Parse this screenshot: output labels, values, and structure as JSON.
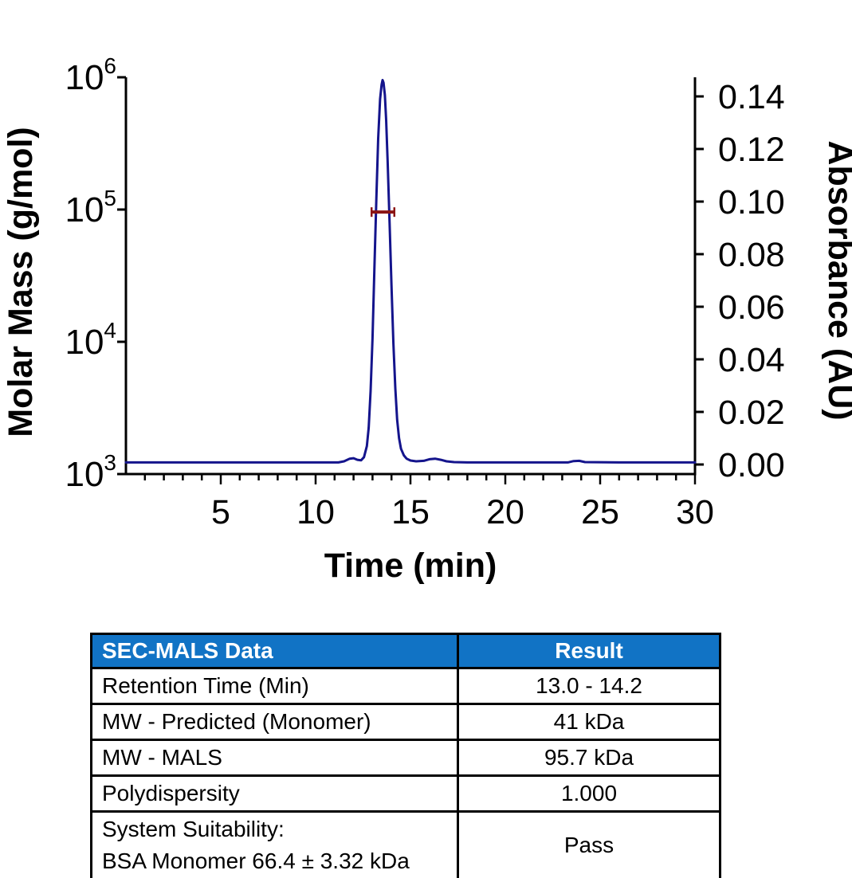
{
  "chart_data": {
    "type": "line",
    "title": "",
    "xlabel": "Time (min)",
    "ylabel_left": "Molar Mass (g/mol)",
    "ylabel_right": "Absorbance (AU)",
    "x_axis": {
      "min": 0,
      "max": 30,
      "major_ticks": [
        5,
        10,
        15,
        20,
        25,
        30
      ],
      "minor_tick_interval": 1
    },
    "y_left_axis": {
      "scale": "log",
      "min": 1000,
      "max": 1000000,
      "tick_exponents": [
        3,
        4,
        5,
        6
      ],
      "tick_base": "10"
    },
    "y_right_axis": {
      "min": 0.0,
      "max": 0.146,
      "tick_step": 0.02,
      "tick_labels": [
        "0.00",
        "0.02",
        "0.04",
        "0.06",
        "0.08",
        "0.10",
        "0.12",
        "0.14"
      ]
    },
    "grid": false,
    "legend": "none",
    "series": [
      {
        "name": "uv-absorbance-trace",
        "axis": "right",
        "color": "#14148C",
        "points": [
          [
            0,
            0.0008
          ],
          [
            2,
            0.0008
          ],
          [
            4,
            0.0008
          ],
          [
            6,
            0.0008
          ],
          [
            8,
            0.0008
          ],
          [
            10,
            0.0008
          ],
          [
            11.2,
            0.0008
          ],
          [
            11.5,
            0.0012
          ],
          [
            11.8,
            0.0022
          ],
          [
            12.0,
            0.0024
          ],
          [
            12.2,
            0.0018
          ],
          [
            12.4,
            0.0016
          ],
          [
            12.55,
            0.0028
          ],
          [
            12.7,
            0.007
          ],
          [
            12.8,
            0.014
          ],
          [
            12.9,
            0.028
          ],
          [
            13.0,
            0.048
          ],
          [
            13.1,
            0.075
          ],
          [
            13.2,
            0.101
          ],
          [
            13.3,
            0.124
          ],
          [
            13.4,
            0.139
          ],
          [
            13.48,
            0.1445
          ],
          [
            13.53,
            0.1462
          ],
          [
            13.58,
            0.1452
          ],
          [
            13.65,
            0.1405
          ],
          [
            13.72,
            0.131
          ],
          [
            13.8,
            0.115
          ],
          [
            13.9,
            0.092
          ],
          [
            14.0,
            0.068
          ],
          [
            14.1,
            0.046
          ],
          [
            14.2,
            0.029
          ],
          [
            14.3,
            0.017
          ],
          [
            14.4,
            0.01
          ],
          [
            14.5,
            0.006
          ],
          [
            14.65,
            0.0035
          ],
          [
            14.8,
            0.0022
          ],
          [
            15.0,
            0.0015
          ],
          [
            15.3,
            0.0012
          ],
          [
            15.7,
            0.0014
          ],
          [
            16.0,
            0.002
          ],
          [
            16.3,
            0.0022
          ],
          [
            16.6,
            0.0018
          ],
          [
            16.9,
            0.0012
          ],
          [
            17.3,
            0.0009
          ],
          [
            18,
            0.0008
          ],
          [
            20,
            0.0008
          ],
          [
            22,
            0.0008
          ],
          [
            23.3,
            0.0008
          ],
          [
            23.6,
            0.0013
          ],
          [
            23.9,
            0.0014
          ],
          [
            24.2,
            0.0009
          ],
          [
            26,
            0.0008
          ],
          [
            28,
            0.0008
          ],
          [
            30,
            0.0008
          ]
        ]
      },
      {
        "name": "mals-molar-mass-marker",
        "axis": "left",
        "color": "#8B1414",
        "molar_mass_g_mol": 95700,
        "t_start": 12.95,
        "t_end": 14.15
      }
    ]
  },
  "table": {
    "header": {
      "col1": "SEC-MALS Data",
      "col2": "Result",
      "bg_color": "#1173C5",
      "text_color": "#FFFFFF"
    },
    "rows": [
      {
        "label": "Retention Time (Min)",
        "value": "13.0 - 14.2"
      },
      {
        "label": "MW - Predicted (Monomer)",
        "value": "41 kDa"
      },
      {
        "label": "MW - MALS",
        "value": "95.7 kDa"
      },
      {
        "label": "Polydispersity",
        "value": "1.000"
      },
      {
        "label": "System Suitability:",
        "label2": "BSA Monomer 66.4 ± 3.32 kDa",
        "value": "Pass"
      }
    ]
  },
  "colors": {
    "axis": "#000000",
    "trace": "#14148C",
    "marker": "#8B1414",
    "header_blue": "#1173C5"
  }
}
